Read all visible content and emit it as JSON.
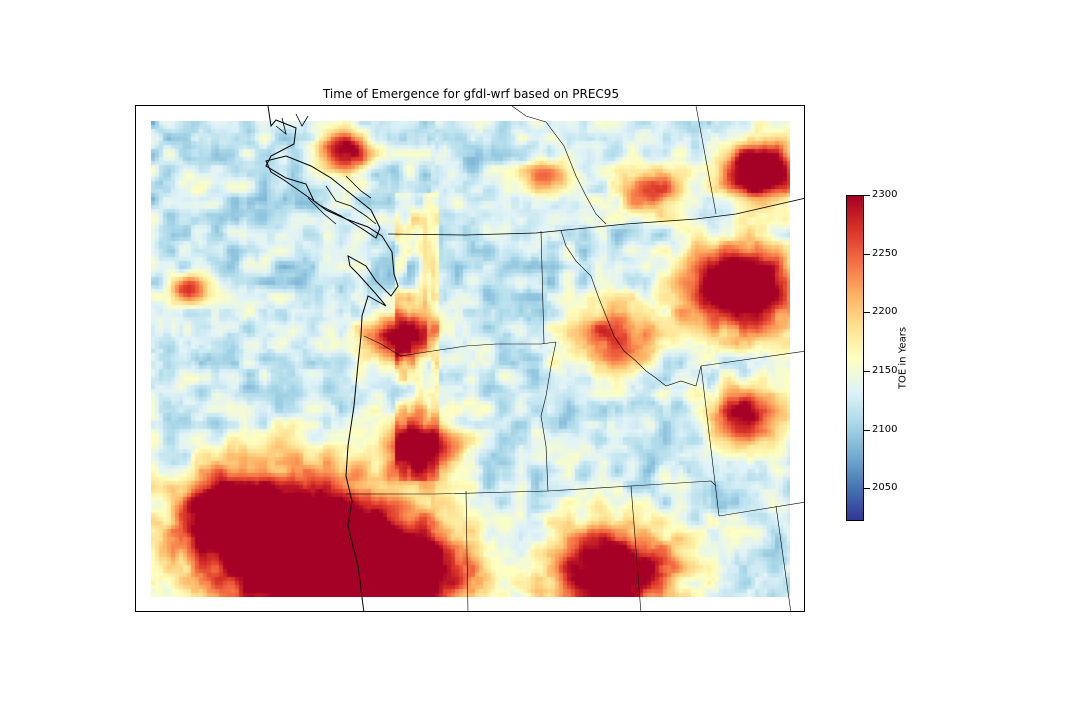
{
  "figure": {
    "title": "Time of Emergence for gfdl-wrf based on PREC95",
    "colormap": "RdYlBu_r",
    "colorbar": {
      "label": "TOE in Years",
      "min": 2022,
      "max": 2300,
      "ticks": [
        "2050",
        "2100",
        "2150",
        "2200",
        "2250",
        "2300"
      ],
      "colors": [
        "#313695",
        "#4575b4",
        "#74add1",
        "#abd9e9",
        "#e0f3f8",
        "#ffffbf",
        "#fee090",
        "#fdae61",
        "#f46d43",
        "#d73027",
        "#a50026"
      ]
    },
    "map": {
      "layers": [
        "coastlines",
        "state-borders",
        "country-border",
        "gridded-toe-field"
      ],
      "region_labels": []
    }
  }
}
